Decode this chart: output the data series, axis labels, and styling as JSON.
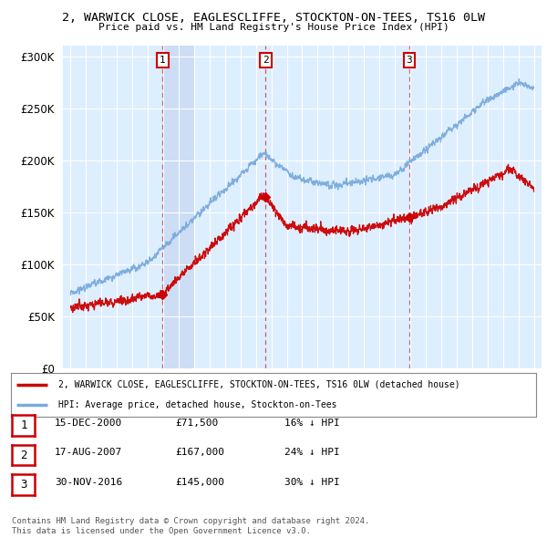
{
  "title_line1": "2, WARWICK CLOSE, EAGLESCLIFFE, STOCKTON-ON-TEES, TS16 0LW",
  "title_line2": "Price paid vs. HM Land Registry's House Price Index (HPI)",
  "background_color": "#ffffff",
  "plot_bg_color": "#ddeeff",
  "grid_color": "#ffffff",
  "hpi_color": "#7aabdc",
  "price_color": "#cc0000",
  "shade_color": "#ccddf5",
  "sale_vline_color": "#cc4444",
  "sale_points": [
    {
      "date_num": 2000.96,
      "price": 71500,
      "label": "1"
    },
    {
      "date_num": 2007.63,
      "price": 167000,
      "label": "2"
    },
    {
      "date_num": 2016.92,
      "price": 145000,
      "label": "3"
    }
  ],
  "legend_entries": [
    "2, WARWICK CLOSE, EAGLESCLIFFE, STOCKTON-ON-TEES, TS16 0LW (detached house)",
    "HPI: Average price, detached house, Stockton-on-Tees"
  ],
  "table_rows": [
    {
      "num": "1",
      "date": "15-DEC-2000",
      "price": "£71,500",
      "hpi": "16% ↓ HPI"
    },
    {
      "num": "2",
      "date": "17-AUG-2007",
      "price": "£167,000",
      "hpi": "24% ↓ HPI"
    },
    {
      "num": "3",
      "date": "30-NOV-2016",
      "price": "£145,000",
      "hpi": "30% ↓ HPI"
    }
  ],
  "footer_line1": "Contains HM Land Registry data © Crown copyright and database right 2024.",
  "footer_line2": "This data is licensed under the Open Government Licence v3.0.",
  "xmin": 1994.5,
  "xmax": 2025.5,
  "ymin": 0,
  "ymax": 310000,
  "yticks": [
    0,
    50000,
    100000,
    150000,
    200000,
    250000,
    300000
  ]
}
